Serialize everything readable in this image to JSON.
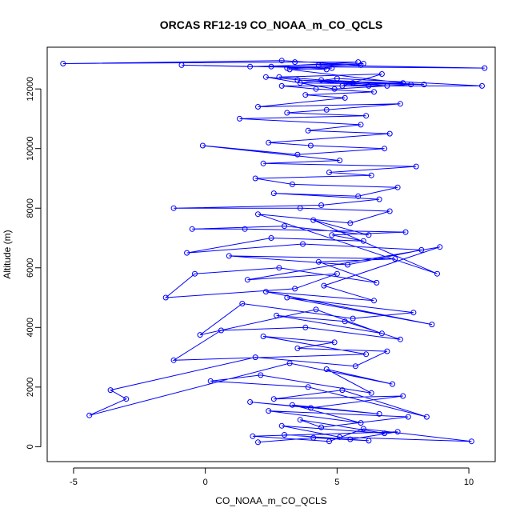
{
  "chart_data": {
    "type": "scatter",
    "title": "ORCAS RF12-19 CO_NOAA_m_CO_QCLS",
    "xlabel": "CO_NOAA_m_CO_QCLS",
    "ylabel": "Altitude (m)",
    "xlim": [
      -6,
      11
    ],
    "ylim": [
      -500,
      13400
    ],
    "x_ticks": [
      -5,
      0,
      5,
      10
    ],
    "x_tick_labels": [
      "-5",
      "0",
      "5",
      "10"
    ],
    "y_ticks": [
      0,
      2000,
      4000,
      6000,
      8000,
      10000,
      12000
    ],
    "y_tick_labels": [
      "0",
      "2000",
      "4000",
      "6000",
      "8000",
      "10000",
      "12000"
    ],
    "grid": false,
    "legend": "none",
    "marker": "open-circle",
    "connected": true,
    "color": "#0000ff",
    "series": [
      {
        "x": [
          2.0,
          4.1,
          6.2,
          3.0,
          5.5,
          7.3,
          1.8,
          4.7,
          6.0,
          10.1,
          5.1,
          2.9,
          6.8,
          3.6,
          4.4,
          7.7,
          2.4,
          5.9,
          3.3,
          6.6,
          1.7,
          4.0,
          7.5,
          2.6,
          5.2,
          8.4,
          3.9,
          0.2,
          2.1,
          6.3,
          4.6,
          7.1,
          3.2,
          -4.4,
          -3.0,
          -3.6,
          1.9,
          5.7,
          6.9,
          3.5,
          4.9,
          2.2,
          6.1,
          -1.2,
          0.6,
          3.8,
          7.4,
          5.3,
          2.7,
          6.7,
          4.2,
          -0.2,
          1.4,
          5.6,
          7.9,
          3.1,
          8.6,
          2.3,
          6.4,
          4.5,
          8.9,
          1.6,
          5.0,
          3.4,
          -1.5,
          -0.4,
          2.8,
          6.5,
          4.3,
          7.2,
          0.9,
          5.4,
          8.2,
          3.7,
          -0.7,
          2.5,
          6.0,
          4.8,
          7.6,
          1.5,
          -0.5,
          3.0,
          6.2,
          4.1,
          8.8,
          2.0,
          5.5,
          7.0,
          3.6,
          -1.2,
          4.4,
          6.6,
          2.6,
          5.8,
          7.3,
          3.3,
          1.9,
          6.3,
          4.7,
          8.0,
          2.2,
          5.1,
          -0.1,
          3.5,
          6.8,
          4.0,
          2.4,
          7.0,
          3.9,
          5.9,
          1.3,
          6.1,
          3.1,
          4.6,
          7.4,
          2.0,
          5.3,
          3.8,
          6.4,
          4.2,
          2.9,
          6.9,
          5.6,
          3.5,
          7.8,
          4.9,
          2.3,
          6.2,
          10.5,
          5.0,
          3.6,
          8.3,
          4.4,
          2.8,
          6.7,
          5.2,
          7.5,
          3.2,
          4.8,
          -0.9,
          1.7,
          6.0,
          4.3,
          10.6,
          2.5,
          5.8,
          3.4,
          -5.4,
          2.9,
          5.9,
          3.1,
          4.6
        ],
        "y": [
          150,
          300,
          200,
          400,
          250,
          500,
          350,
          180,
          600,
          180,
          320,
          700,
          450,
          900,
          650,
          1000,
          1200,
          800,
          1400,
          1100,
          1500,
          1300,
          1700,
          1600,
          1900,
          1000,
          2000,
          2200,
          2400,
          1800,
          2600,
          2100,
          2800,
          1050,
          1600,
          1900,
          3000,
          2700,
          3200,
          3300,
          3500,
          3700,
          3100,
          2900,
          3900,
          4000,
          3600,
          4200,
          4400,
          3800,
          4600,
          3750,
          4800,
          4300,
          4500,
          5000,
          4100,
          5200,
          4900,
          5400,
          6700,
          5600,
          5800,
          5300,
          5000,
          5800,
          6000,
          5500,
          6200,
          6300,
          6400,
          6100,
          6600,
          6800,
          6500,
          7000,
          6900,
          7100,
          7200,
          7300,
          7300,
          7400,
          7100,
          7600,
          5800,
          7800,
          7500,
          7900,
          8000,
          8000,
          8100,
          8300,
          8500,
          8400,
          8700,
          8800,
          9000,
          9100,
          9200,
          9400,
          9500,
          9600,
          10100,
          9800,
          10000,
          10100,
          10200,
          10500,
          10600,
          10800,
          11000,
          11100,
          11200,
          11300,
          11500,
          11400,
          11700,
          11800,
          11900,
          12000,
          12100,
          12100,
          12200,
          12300,
          12150,
          12000,
          12400,
          12100,
          12100,
          12350,
          12200,
          12150,
          12300,
          12400,
          12500,
          12100,
          12200,
          12650,
          12700,
          12800,
          12750,
          12850,
          12800,
          12700,
          12750,
          12900,
          12900,
          12850,
          12950,
          12800,
          12700,
          12650
        ]
      }
    ]
  }
}
